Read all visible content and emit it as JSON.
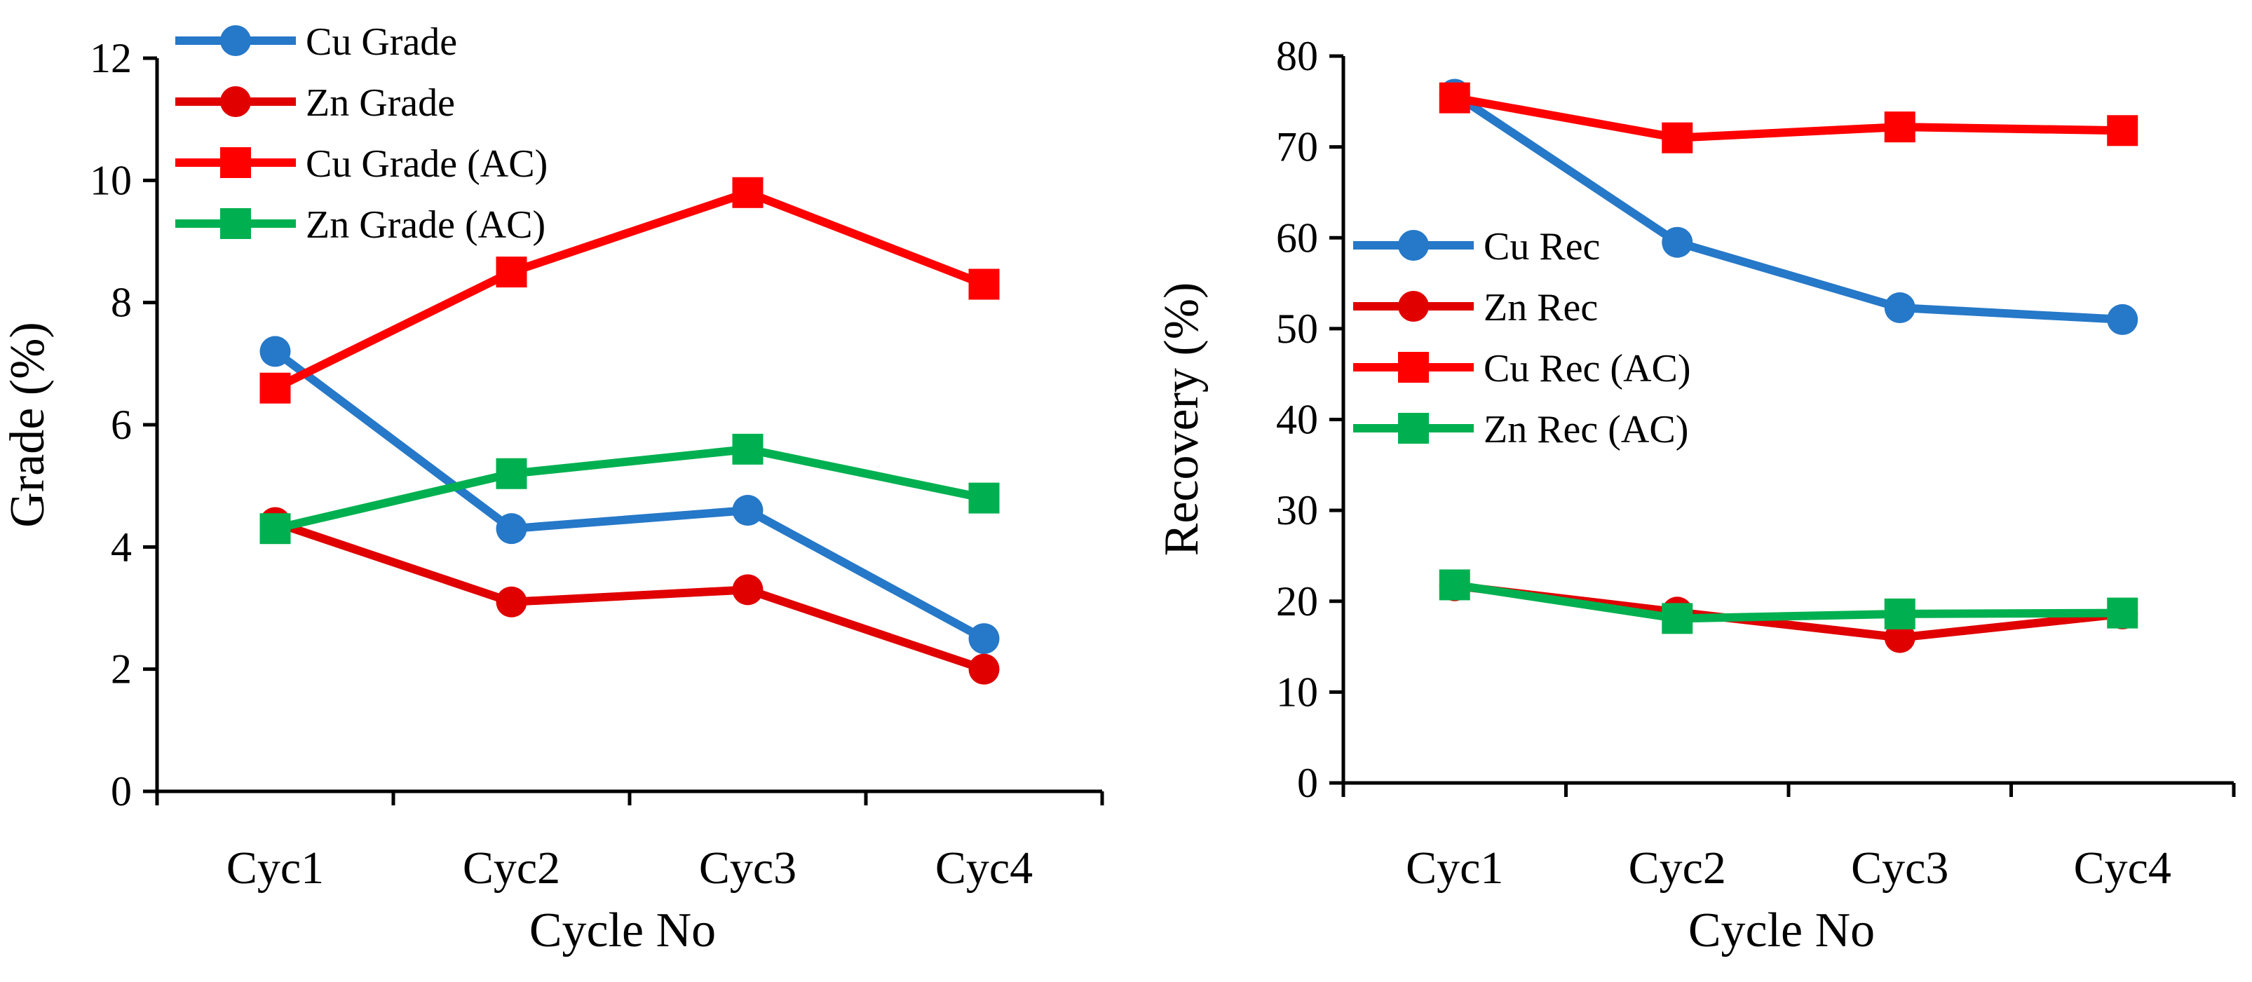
{
  "chart_data": [
    {
      "type": "line",
      "title": "",
      "xlabel": "Cycle No",
      "ylabel": "Grade (%)",
      "categories": [
        "Cyc1",
        "Cyc2",
        "Cyc3",
        "Cyc4"
      ],
      "ylim": [
        0,
        12
      ],
      "yticks": [
        0,
        2,
        4,
        6,
        8,
        10,
        12
      ],
      "grid": false,
      "legend_position": "top-left",
      "series": [
        {
          "name": "Cu Grade",
          "values": [
            7.2,
            4.3,
            4.6,
            2.5
          ],
          "color": "#2678c8",
          "marker": "circle"
        },
        {
          "name": "Zn Grade",
          "values": [
            4.4,
            3.1,
            3.3,
            2.0
          ],
          "color": "#e00000",
          "marker": "circle"
        },
        {
          "name": "Cu Grade (AC)",
          "values": [
            6.6,
            8.5,
            9.8,
            8.3
          ],
          "color": "#ff0000",
          "marker": "square"
        },
        {
          "name": "Zn Grade (AC)",
          "values": [
            4.3,
            5.2,
            5.6,
            4.8
          ],
          "color": "#00b050",
          "marker": "square"
        }
      ]
    },
    {
      "type": "line",
      "title": "",
      "xlabel": "Cycle No",
      "ylabel": "Recovery (%)",
      "categories": [
        "Cyc1",
        "Cyc2",
        "Cyc3",
        "Cyc4"
      ],
      "ylim": [
        0,
        80
      ],
      "yticks": [
        0,
        10,
        20,
        30,
        40,
        50,
        60,
        70,
        80
      ],
      "grid": false,
      "legend_position": "middle-left",
      "series": [
        {
          "name": "Cu Rec",
          "values": [
            75.8,
            59.5,
            52.3,
            51.0
          ],
          "color": "#2678c8",
          "marker": "circle"
        },
        {
          "name": "Zn Rec",
          "values": [
            21.7,
            18.8,
            16.0,
            18.6
          ],
          "color": "#e00000",
          "marker": "circle"
        },
        {
          "name": "Cu Rec (AC)",
          "values": [
            75.4,
            71.0,
            72.2,
            71.8
          ],
          "color": "#ff0000",
          "marker": "square"
        },
        {
          "name": "Zn Rec (AC)",
          "values": [
            21.8,
            18.1,
            18.6,
            18.7
          ],
          "color": "#00b050",
          "marker": "square"
        }
      ]
    }
  ]
}
